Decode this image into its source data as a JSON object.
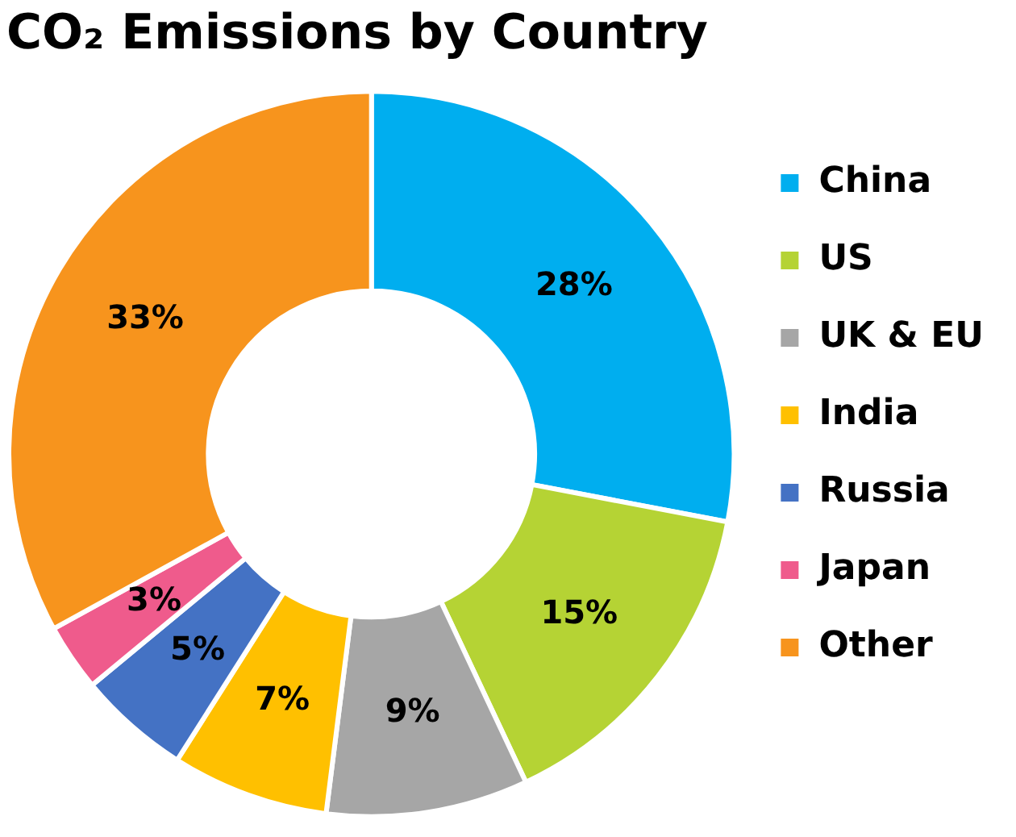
{
  "chart_data": {
    "type": "donut",
    "title": "CO₂ Emissions by Country",
    "categories": [
      "China",
      "US",
      "UK & EU",
      "India",
      "Russia",
      "Japan",
      "Other"
    ],
    "values": [
      28,
      15,
      9,
      7,
      5,
      3,
      33
    ],
    "colors": [
      "#00aeef",
      "#b5d334",
      "#a6a6a6",
      "#ffc000",
      "#4472c4",
      "#ef5b8c",
      "#f7941d"
    ],
    "value_labels": [
      "28%",
      "15%",
      "9%",
      "7%",
      "5%",
      "3%",
      "33%"
    ],
    "legend": "right"
  }
}
